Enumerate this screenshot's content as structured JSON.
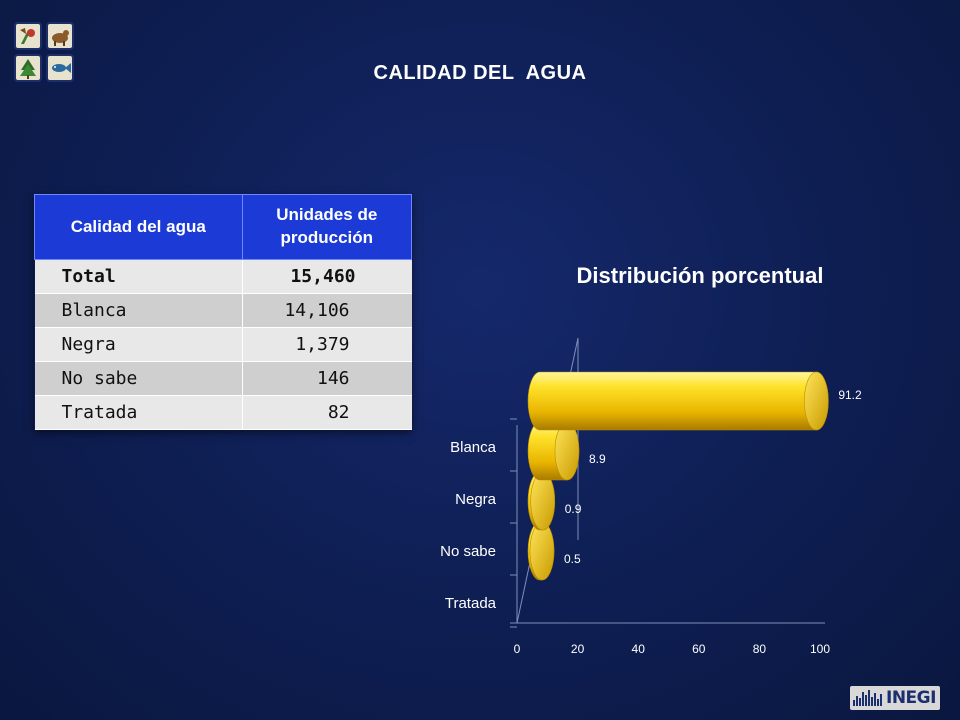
{
  "page": {
    "title": "CALIDAD DEL  AGUA"
  },
  "logos": {
    "left": "logo-icon",
    "right": "inegi-logo",
    "right_text": "INEGI"
  },
  "table": {
    "headers": [
      "Calidad del agua",
      "Unidades de producción"
    ],
    "rows": [
      {
        "label": "Total",
        "value": "15,460"
      },
      {
        "label": "Blanca",
        "value": "14,106"
      },
      {
        "label": "Negra",
        "value": "1,379"
      },
      {
        "label": "No sabe",
        "value": "146"
      },
      {
        "label": "Tratada",
        "value": "82"
      }
    ],
    "colors": {
      "header": "#1c3bd6",
      "row_light": "#e8e8e8",
      "row_dark": "#cfcfcf"
    }
  },
  "chart_data": {
    "type": "bar",
    "orientation": "horizontal",
    "style": "3d-cylinder",
    "title": "Distribución porcentual",
    "categories": [
      "Blanca",
      "Negra",
      "No sabe",
      "Tratada"
    ],
    "values": [
      91.2,
      8.9,
      0.9,
      0.5
    ],
    "data_labels": [
      "91.2",
      "8.9",
      "0.9",
      "0.5"
    ],
    "xlim": [
      0,
      100
    ],
    "xticks": [
      "0",
      "20",
      "40",
      "60",
      "80",
      "100"
    ],
    "xlabel": "",
    "ylabel": "",
    "grid": false,
    "legend": "none",
    "bar_color": "#f4cf14"
  }
}
